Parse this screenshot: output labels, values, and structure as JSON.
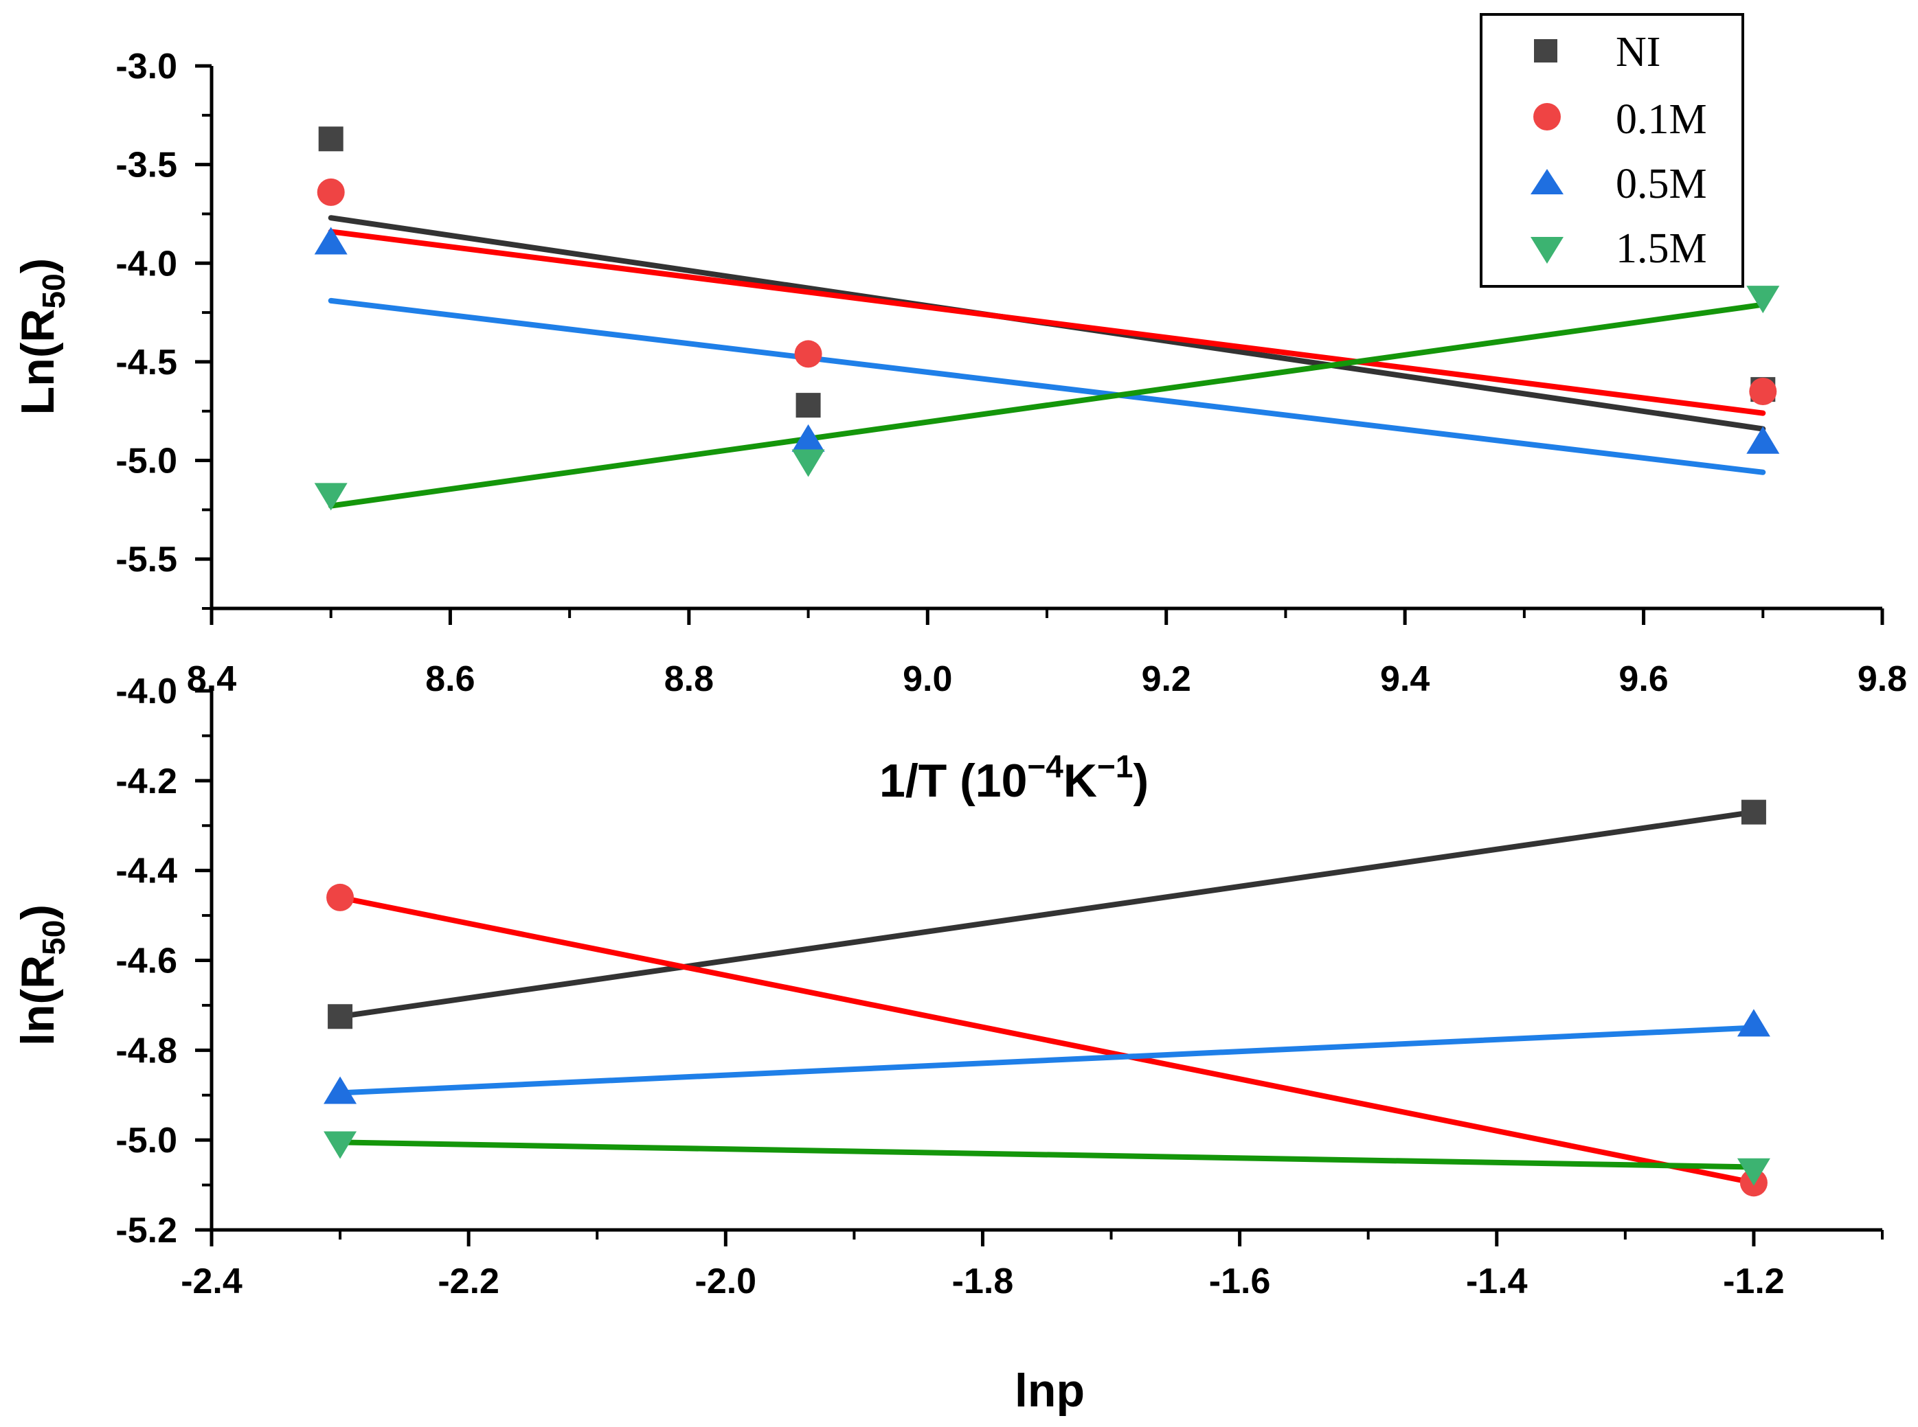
{
  "chart_data": [
    {
      "type": "scatter",
      "title": "",
      "xlabel": "1/T (10",
      "xlabel_exp1": "−4",
      "xlabel_mid": "K",
      "xlabel_exp2": "−1",
      "xlabel_end": ")",
      "ylabel": "Ln(R",
      "ylabel_sub": "50",
      "ylabel_end": ")",
      "xlim": [
        8.4,
        9.8
      ],
      "ylim": [
        -5.75,
        -3.0
      ],
      "x_ticks": [
        "8.4",
        "8.6",
        "8.8",
        "9.0",
        "9.2",
        "9.4",
        "9.6",
        "9.8"
      ],
      "y_ticks": [
        "-3.0",
        "-3.5",
        "-4.0",
        "-4.5",
        "-5.0",
        "-5.5"
      ],
      "legend_position": "top-right",
      "series": [
        {
          "name": "NI",
          "marker": "square",
          "color": "#444444",
          "line_color": "#333333",
          "x": [
            8.5,
            8.9,
            9.7
          ],
          "y": [
            -3.37,
            -4.72,
            -4.64
          ],
          "fit": [
            [
              8.5,
              -3.77
            ],
            [
              9.7,
              -4.84
            ]
          ]
        },
        {
          "name": "0.1M",
          "marker": "circle",
          "color": "#ef4444",
          "line_color": "#ff0000",
          "x": [
            8.5,
            8.9,
            9.7
          ],
          "y": [
            -3.64,
            -4.46,
            -4.65
          ],
          "fit": [
            [
              8.5,
              -3.84
            ],
            [
              9.7,
              -4.76
            ]
          ]
        },
        {
          "name": "0.5M",
          "marker": "triangle-up",
          "color": "#1f6fe0",
          "line_color": "#1f7fe8",
          "x": [
            8.5,
            8.9,
            9.7
          ],
          "y": [
            -3.9,
            -4.9,
            -4.91
          ],
          "fit": [
            [
              8.5,
              -4.19
            ],
            [
              9.7,
              -5.06
            ]
          ]
        },
        {
          "name": "1.5M",
          "marker": "triangle-down",
          "color": "#3cb371",
          "line_color": "#14960a",
          "x": [
            8.5,
            8.9,
            9.7
          ],
          "y": [
            -5.17,
            -5.0,
            -4.17
          ],
          "fit": [
            [
              8.5,
              -5.23
            ],
            [
              9.7,
              -4.21
            ]
          ]
        }
      ]
    },
    {
      "type": "scatter",
      "title": "",
      "xlabel": "lnp",
      "ylabel": "ln(R",
      "ylabel_sub": "50",
      "ylabel_end": ")",
      "xlim": [
        -2.4,
        -1.1
      ],
      "ylim": [
        -5.2,
        -4.0
      ],
      "x_ticks": [
        "-2.4",
        "-2.2",
        "-2.0",
        "-1.8",
        "-1.6",
        "-1.4",
        "-1.2"
      ],
      "y_ticks": [
        "-4.0",
        "-4.2",
        "-4.4",
        "-4.6",
        "-4.8",
        "-5.0",
        "-5.2"
      ],
      "series": [
        {
          "name": "NI",
          "marker": "square",
          "color": "#444444",
          "line_color": "#333333",
          "x": [
            -2.3,
            -1.2
          ],
          "y": [
            -4.725,
            -4.27
          ],
          "fit": [
            [
              -2.3,
              -4.725
            ],
            [
              -1.2,
              -4.27
            ]
          ]
        },
        {
          "name": "0.1M",
          "marker": "circle",
          "color": "#ef4444",
          "line_color": "#ff0000",
          "x": [
            -2.3,
            -1.2
          ],
          "y": [
            -4.46,
            -5.095
          ],
          "fit": [
            [
              -2.3,
              -4.46
            ],
            [
              -1.2,
              -5.095
            ]
          ]
        },
        {
          "name": "0.5M",
          "marker": "triangle-up",
          "color": "#1f6fe0",
          "line_color": "#1f7fe8",
          "x": [
            -2.3,
            -1.2
          ],
          "y": [
            -4.895,
            -4.745
          ],
          "fit": [
            [
              -2.3,
              -4.895
            ],
            [
              -1.2,
              -4.75
            ]
          ]
        },
        {
          "name": "1.5M",
          "marker": "triangle-down",
          "color": "#3cb371",
          "line_color": "#14960a",
          "x": [
            -2.3,
            -1.2
          ],
          "y": [
            -5.005,
            -5.065
          ],
          "fit": [
            [
              -2.3,
              -5.005
            ],
            [
              -1.2,
              -5.06
            ]
          ]
        }
      ]
    }
  ]
}
